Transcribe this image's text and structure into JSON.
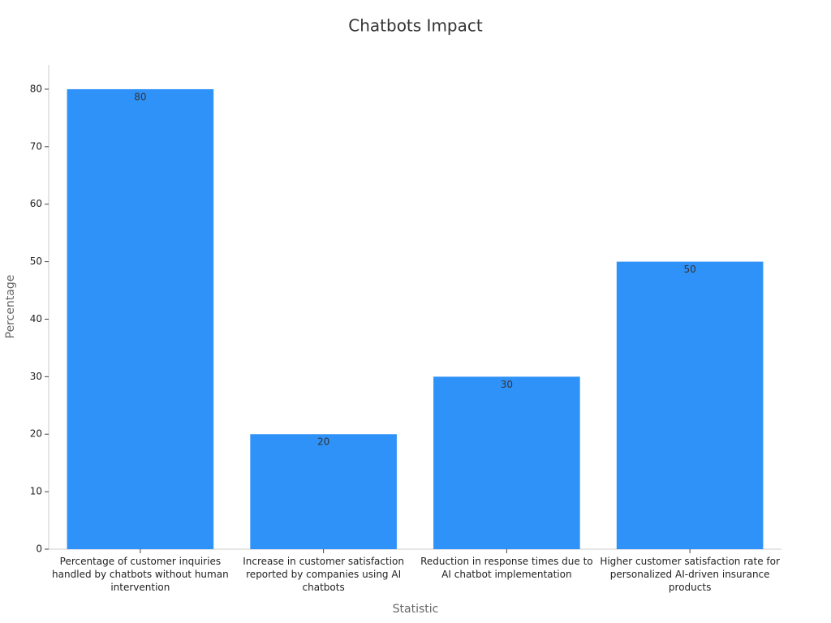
{
  "chart_data": {
    "type": "bar",
    "title": "Chatbots Impact",
    "x_label": "Statistic",
    "y_label": "Percentage",
    "categories": [
      "Percentage of customer inquiries handled by chatbots without human intervention",
      "Increase in customer satisfaction reported by companies using AI chatbots",
      "Reduction in response times due to AI chatbot implementation",
      "Higher customer satisfaction rate for personalized AI-driven insurance products"
    ],
    "values": [
      80,
      20,
      30,
      50
    ],
    "color": "#2f92f8",
    "ylim": [
      0,
      84
    ],
    "yticks": [
      0,
      10,
      20,
      30,
      40,
      50,
      60,
      70,
      80
    ]
  }
}
